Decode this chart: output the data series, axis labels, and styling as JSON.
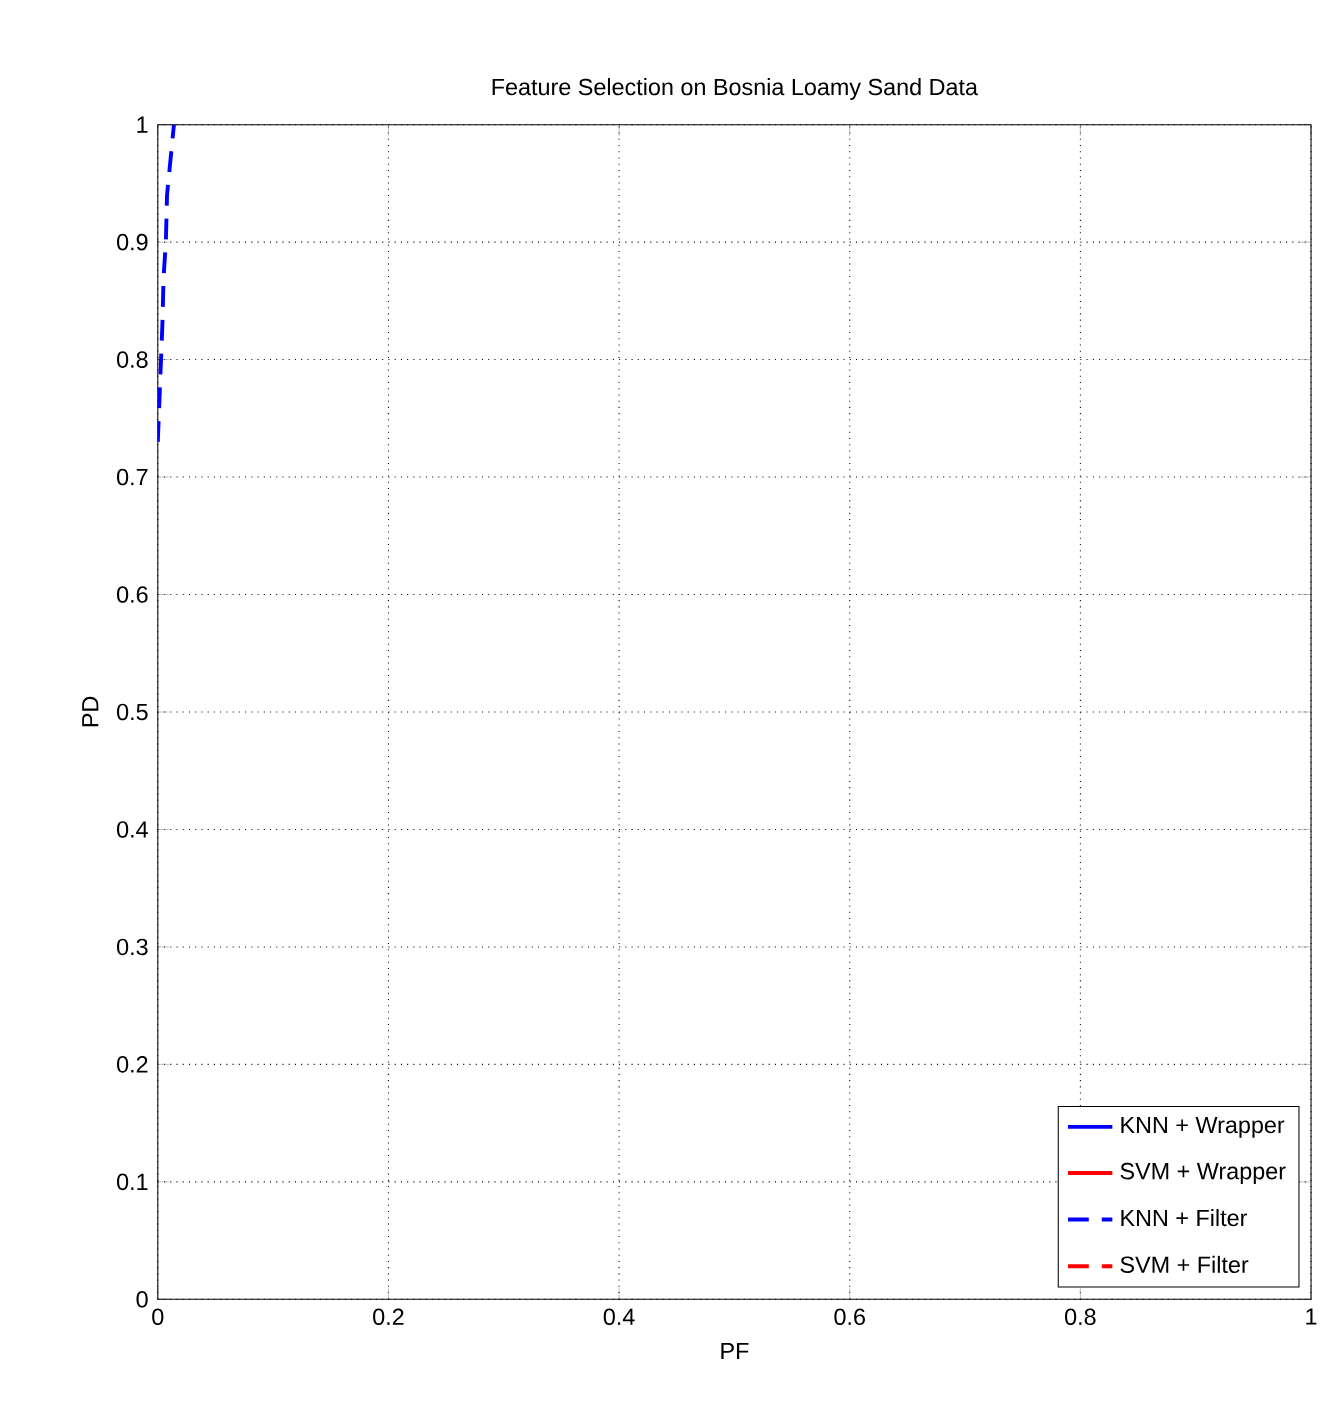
{
  "chart_data": {
    "type": "line",
    "title": "Feature Selection on Bosnia Loamy Sand Data",
    "xlabel": "PF",
    "ylabel": "PD",
    "xlim": [
      0,
      1
    ],
    "ylim": [
      0,
      1
    ],
    "xticks": [
      0,
      0.2,
      0.4,
      0.6,
      0.8,
      1
    ],
    "yticks": [
      0,
      0.1,
      0.2,
      0.3,
      0.4,
      0.5,
      0.6,
      0.7,
      0.8,
      0.9,
      1
    ],
    "grid": true,
    "legend": "bottom right",
    "series": [
      {
        "name": "KNN + Wrapper",
        "color": "#0000ff",
        "line_style": "solid"
      },
      {
        "name": "SVM + Wrapper",
        "color": "#ff0000",
        "line_style": "solid"
      },
      {
        "name": "KNN + Filter",
        "color": "#0000ff",
        "line_style": "dashed",
        "x": [
          0,
          0.002,
          0.004,
          0.005,
          0.007,
          0.008,
          0.011,
          0.014
        ],
        "values": [
          0.73,
          0.78,
          0.83,
          0.87,
          0.9,
          0.94,
          0.97,
          1
        ]
      },
      {
        "name": "SVM + Filter",
        "color": "#ff0000",
        "line_style": "dashed"
      }
    ]
  }
}
